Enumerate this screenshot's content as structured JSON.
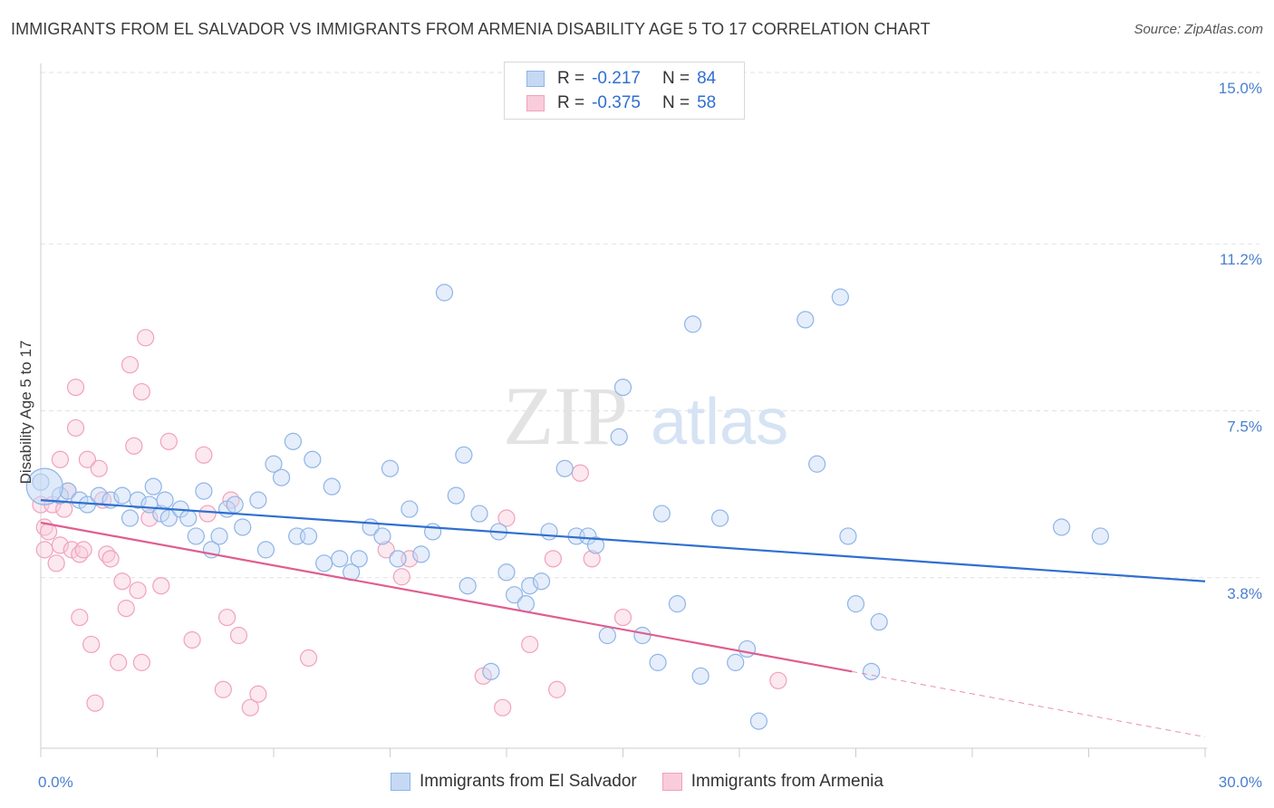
{
  "title": "IMMIGRANTS FROM EL SALVADOR VS IMMIGRANTS FROM ARMENIA DISABILITY AGE 5 TO 17 CORRELATION CHART",
  "source": "Source: ZipAtlas.com",
  "watermark": {
    "zip": "ZIP",
    "atlas": "atlas"
  },
  "legend": {
    "rows": [
      {
        "r_label": "R =",
        "r_value": "-0.217",
        "n_label": "N =",
        "n_value": "84"
      },
      {
        "r_label": "R =",
        "r_value": "-0.375",
        "n_label": "N =",
        "n_value": "58"
      }
    ]
  },
  "chart_data": {
    "type": "scatter",
    "title": "IMMIGRANTS FROM EL SALVADOR VS IMMIGRANTS FROM ARMENIA DISABILITY AGE 5 TO 17 CORRELATION CHART",
    "xlabel": "",
    "ylabel": "Disability Age 5 to 17",
    "xlim": [
      0,
      30
    ],
    "ylim": [
      0,
      15.6
    ],
    "x_tick_labels": [
      "0.0%",
      "30.0%"
    ],
    "y_tick_labels": [
      "3.8%",
      "7.5%",
      "11.2%",
      "15.0%"
    ],
    "y_ticks": [
      3.8,
      7.5,
      11.2,
      15.0
    ],
    "grid": true,
    "legend_position": "top-center",
    "series": [
      {
        "name": "Immigrants from El Salvador",
        "color": "#8fb4e8",
        "fill": "#c5d9f4",
        "line_color": "#2f6fd1",
        "r": "-0.217",
        "n": "84",
        "trend": {
          "x": [
            0,
            30
          ],
          "y": [
            5.5,
            3.7
          ]
        },
        "points": [
          [
            0,
            5.9
          ],
          [
            0.5,
            5.6
          ],
          [
            0.7,
            5.7
          ],
          [
            1.0,
            5.5
          ],
          [
            1.2,
            5.4
          ],
          [
            1.5,
            5.6
          ],
          [
            1.8,
            5.5
          ],
          [
            2.1,
            5.6
          ],
          [
            2.3,
            5.1
          ],
          [
            2.5,
            5.5
          ],
          [
            2.8,
            5.4
          ],
          [
            2.9,
            5.8
          ],
          [
            3.1,
            5.2
          ],
          [
            3.2,
            5.5
          ],
          [
            3.3,
            5.1
          ],
          [
            3.6,
            5.3
          ],
          [
            3.8,
            5.1
          ],
          [
            4.0,
            4.7
          ],
          [
            4.2,
            5.7
          ],
          [
            4.4,
            4.4
          ],
          [
            4.6,
            4.7
          ],
          [
            4.8,
            5.3
          ],
          [
            5.0,
            5.4
          ],
          [
            5.2,
            4.9
          ],
          [
            5.6,
            5.5
          ],
          [
            5.8,
            4.4
          ],
          [
            6.0,
            6.3
          ],
          [
            6.2,
            6.0
          ],
          [
            6.5,
            6.8
          ],
          [
            6.6,
            4.7
          ],
          [
            6.9,
            4.7
          ],
          [
            7.0,
            6.4
          ],
          [
            7.3,
            4.1
          ],
          [
            7.5,
            5.8
          ],
          [
            7.7,
            4.2
          ],
          [
            8.0,
            3.9
          ],
          [
            8.2,
            4.2
          ],
          [
            8.5,
            4.9
          ],
          [
            8.8,
            4.7
          ],
          [
            9.0,
            6.2
          ],
          [
            9.2,
            4.2
          ],
          [
            9.5,
            5.3
          ],
          [
            9.8,
            4.3
          ],
          [
            10.1,
            4.8
          ],
          [
            10.4,
            10.1
          ],
          [
            10.7,
            5.6
          ],
          [
            10.9,
            6.5
          ],
          [
            11.0,
            3.6
          ],
          [
            11.3,
            5.2
          ],
          [
            11.6,
            1.7
          ],
          [
            11.8,
            4.8
          ],
          [
            12.0,
            3.9
          ],
          [
            12.2,
            3.4
          ],
          [
            12.5,
            3.2
          ],
          [
            12.6,
            3.6
          ],
          [
            12.9,
            3.7
          ],
          [
            13.1,
            4.8
          ],
          [
            13.5,
            6.2
          ],
          [
            13.8,
            4.7
          ],
          [
            14.1,
            4.7
          ],
          [
            14.3,
            4.5
          ],
          [
            14.6,
            2.5
          ],
          [
            14.9,
            6.9
          ],
          [
            15.0,
            8.0
          ],
          [
            15.5,
            2.5
          ],
          [
            15.9,
            1.9
          ],
          [
            16.0,
            5.2
          ],
          [
            16.4,
            3.2
          ],
          [
            16.8,
            9.4
          ],
          [
            17.0,
            1.6
          ],
          [
            17.5,
            5.1
          ],
          [
            17.9,
            1.9
          ],
          [
            18.2,
            2.2
          ],
          [
            18.5,
            0.6
          ],
          [
            19.7,
            9.5
          ],
          [
            20.0,
            6.3
          ],
          [
            20.6,
            10.0
          ],
          [
            20.8,
            4.7
          ],
          [
            21.0,
            3.2
          ],
          [
            21.4,
            1.7
          ],
          [
            21.6,
            2.8
          ],
          [
            26.3,
            4.9
          ],
          [
            27.3,
            4.7
          ],
          [
            0.1,
            5.8
          ]
        ]
      },
      {
        "name": "Immigrants from Armenia",
        "color": "#f0a2bc",
        "fill": "#f8ccdb",
        "line_color": "#e05d8f",
        "r": "-0.375",
        "n": "58",
        "trend": {
          "x": [
            0,
            20.9
          ],
          "y": [
            5.0,
            1.7
          ]
        },
        "trend_extension": {
          "x": [
            20.9,
            30
          ],
          "y": [
            1.7,
            0.25
          ]
        },
        "points": [
          [
            0.0,
            5.4
          ],
          [
            0.1,
            4.9
          ],
          [
            0.1,
            4.4
          ],
          [
            0.2,
            4.8
          ],
          [
            0.3,
            5.4
          ],
          [
            0.4,
            4.1
          ],
          [
            0.5,
            4.5
          ],
          [
            0.5,
            6.4
          ],
          [
            0.6,
            5.3
          ],
          [
            0.7,
            5.7
          ],
          [
            0.8,
            4.4
          ],
          [
            0.9,
            8.0
          ],
          [
            0.9,
            7.1
          ],
          [
            1.0,
            2.9
          ],
          [
            1.0,
            4.3
          ],
          [
            1.1,
            4.4
          ],
          [
            1.2,
            6.4
          ],
          [
            1.3,
            2.3
          ],
          [
            1.4,
            1.0
          ],
          [
            1.5,
            6.2
          ],
          [
            1.6,
            5.5
          ],
          [
            1.7,
            4.3
          ],
          [
            1.8,
            4.2
          ],
          [
            2.0,
            1.9
          ],
          [
            2.1,
            3.7
          ],
          [
            2.2,
            3.1
          ],
          [
            2.3,
            8.5
          ],
          [
            2.4,
            6.7
          ],
          [
            2.5,
            3.5
          ],
          [
            2.6,
            1.9
          ],
          [
            2.6,
            7.9
          ],
          [
            2.7,
            9.1
          ],
          [
            2.8,
            5.1
          ],
          [
            3.1,
            3.6
          ],
          [
            3.3,
            6.8
          ],
          [
            3.9,
            2.4
          ],
          [
            4.2,
            6.5
          ],
          [
            4.3,
            5.2
          ],
          [
            4.7,
            1.3
          ],
          [
            4.8,
            2.9
          ],
          [
            4.9,
            5.5
          ],
          [
            5.1,
            2.5
          ],
          [
            5.4,
            0.9
          ],
          [
            5.6,
            1.2
          ],
          [
            6.9,
            2.0
          ],
          [
            8.9,
            4.4
          ],
          [
            9.3,
            3.8
          ],
          [
            9.5,
            4.2
          ],
          [
            11.4,
            1.6
          ],
          [
            11.9,
            0.9
          ],
          [
            12.0,
            5.1
          ],
          [
            12.6,
            2.3
          ],
          [
            13.2,
            4.2
          ],
          [
            13.3,
            1.3
          ],
          [
            13.9,
            6.1
          ],
          [
            14.2,
            4.2
          ],
          [
            15.0,
            2.9
          ],
          [
            19.0,
            1.5
          ]
        ]
      }
    ]
  }
}
